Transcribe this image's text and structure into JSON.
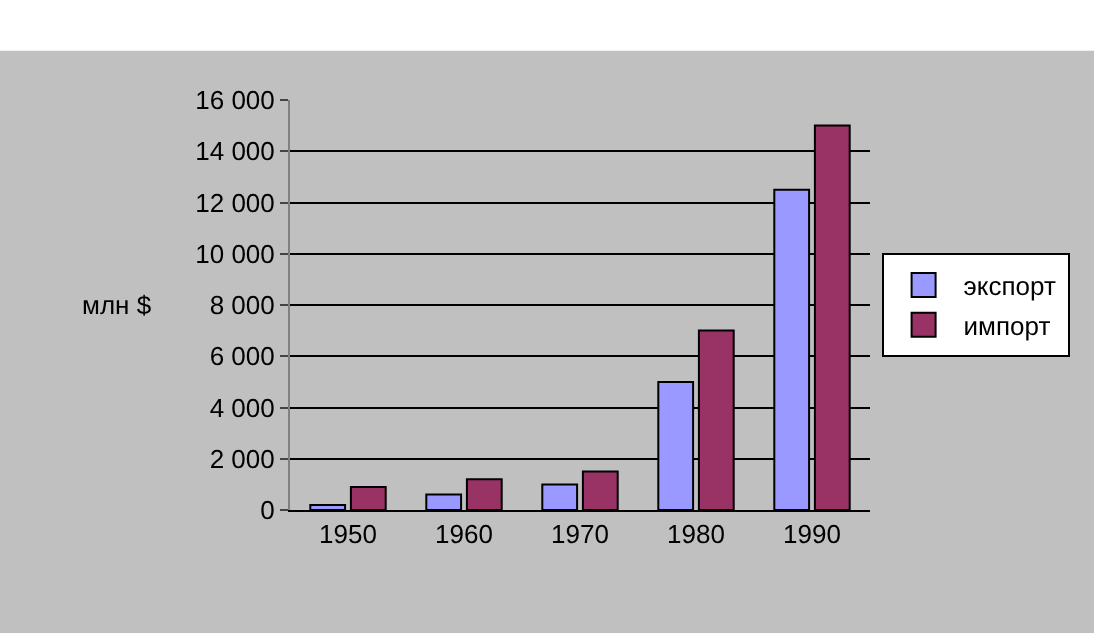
{
  "chart_data": {
    "type": "bar",
    "ylabel": "млн $",
    "categories": [
      "1950",
      "1960",
      "1970",
      "1980",
      "1990"
    ],
    "series": [
      {
        "name": "экспорт",
        "color": "#9999ff",
        "values": [
          200,
          600,
          1000,
          5000,
          12500
        ]
      },
      {
        "name": "импорт",
        "color": "#993366",
        "values": [
          900,
          1200,
          1500,
          7000,
          15000
        ]
      }
    ],
    "ylim": [
      0,
      16000
    ],
    "yticks": [
      {
        "value": 0,
        "label": "0"
      },
      {
        "value": 2000,
        "label": "2 000"
      },
      {
        "value": 4000,
        "label": "4 000"
      },
      {
        "value": 6000,
        "label": "6 000"
      },
      {
        "value": 8000,
        "label": "8 000"
      },
      {
        "value": 10000,
        "label": "10 000"
      },
      {
        "value": 12000,
        "label": "12 000"
      },
      {
        "value": 14000,
        "label": "14 000"
      },
      {
        "value": 16000,
        "label": "16 000"
      }
    ],
    "grid": true,
    "legend": "right"
  }
}
